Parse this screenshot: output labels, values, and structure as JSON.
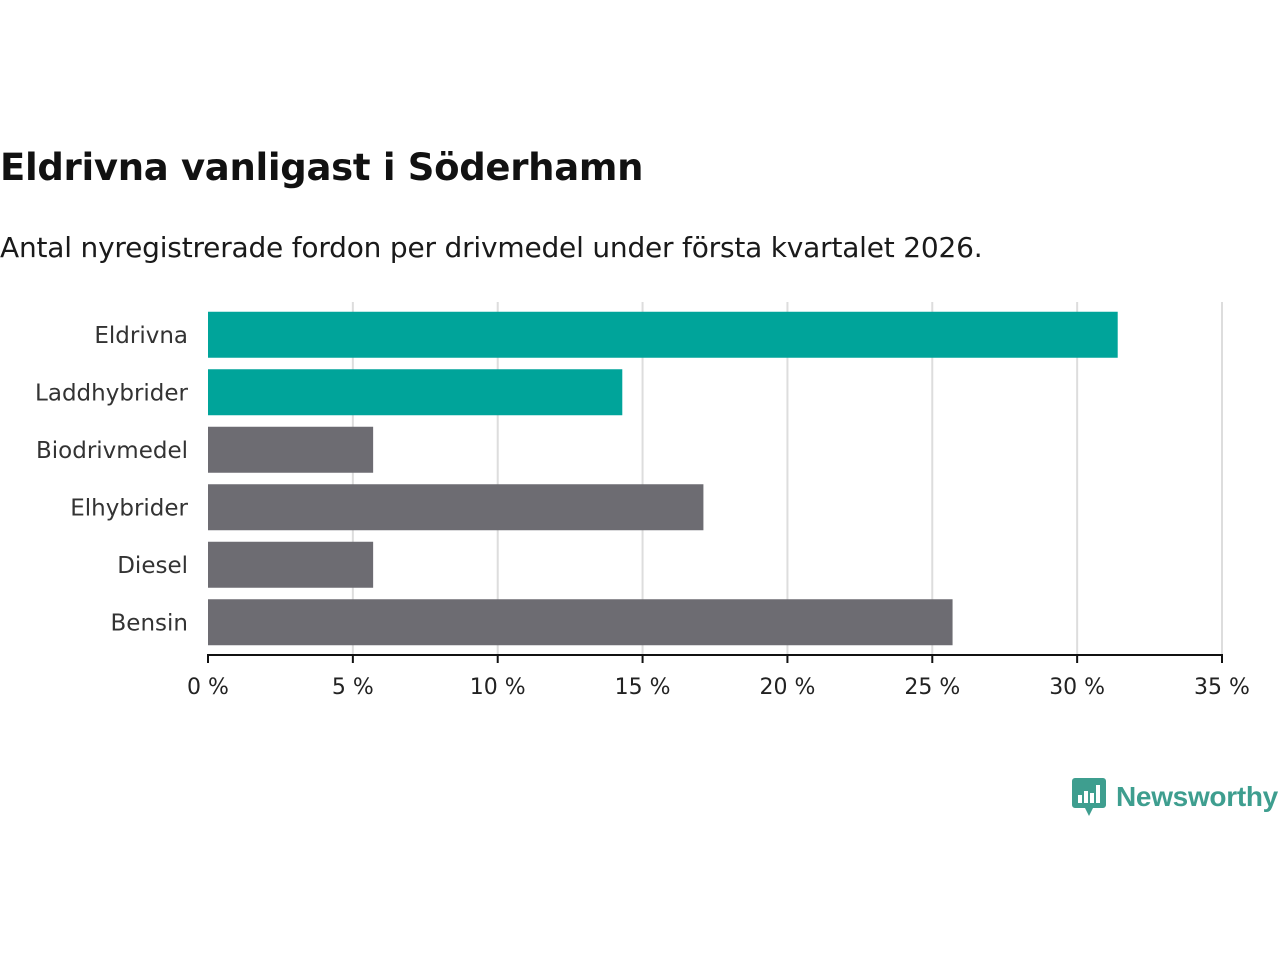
{
  "title": "Eldrivna vanligast i Söderhamn",
  "subtitle": "Antal nyregistrerade fordon per drivmedel under första kvartalet 2026.",
  "chart_data": {
    "type": "bar",
    "orientation": "horizontal",
    "categories": [
      "Eldrivna",
      "Laddhybrider",
      "Biodrivmedel",
      "Elhybrider",
      "Diesel",
      "Bensin"
    ],
    "values": [
      31.4,
      14.3,
      5.7,
      17.1,
      5.7,
      25.7
    ],
    "colors": [
      "#00a49a",
      "#00a49a",
      "#6d6c72",
      "#6d6c72",
      "#6d6c72",
      "#6d6c72"
    ],
    "xlim": [
      0,
      35
    ],
    "xticks": [
      0,
      5,
      10,
      15,
      20,
      25,
      30,
      35
    ],
    "xtick_labels": [
      "0 %",
      "5 %",
      "10 %",
      "15 %",
      "20 %",
      "25 %",
      "30 %",
      "35 %"
    ],
    "grid": true,
    "xlabel": "",
    "ylabel": ""
  },
  "logo": {
    "text": "Newsworthy",
    "color": "#3e9e8f"
  }
}
